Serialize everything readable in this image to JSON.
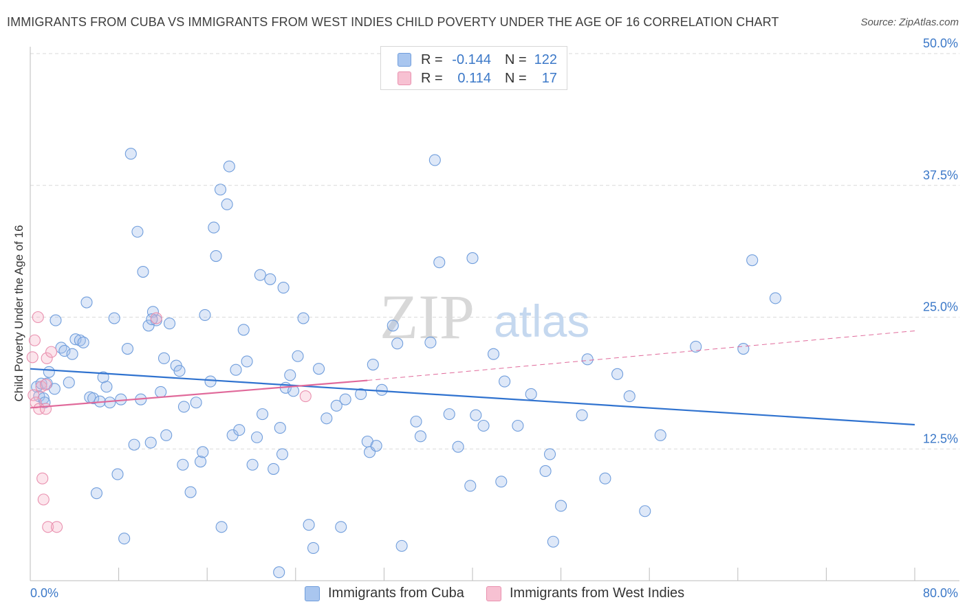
{
  "header": {
    "title": "IMMIGRANTS FROM CUBA VS IMMIGRANTS FROM WEST INDIES CHILD POVERTY UNDER THE AGE OF 16 CORRELATION CHART",
    "source": "Source: ZipAtlas.com"
  },
  "watermark": {
    "zip": "ZIP",
    "atlas": "atlas"
  },
  "legend": {
    "rows": [
      {
        "r_label": "R =",
        "r_value": "-0.144",
        "n_label": "N =",
        "n_value": "122",
        "color": "#a9c6ef",
        "border": "#6f9ddc"
      },
      {
        "r_label": "R =",
        "r_value": "0.114",
        "n_label": "N =",
        "n_value": "17",
        "color": "#f7c1d2",
        "border": "#e98fae"
      }
    ]
  },
  "bottom_legend": {
    "cuba": "Immigrants from Cuba",
    "west_indies": "Immigrants from West Indies"
  },
  "colors": {
    "cuba_fill": "rgba(160,190,235,0.35)",
    "cuba_stroke": "#6f9ddc",
    "cuba_line": "#2f72cf",
    "wi_fill": "rgba(245,180,200,0.35)",
    "wi_stroke": "#e98fae",
    "wi_line": "#e0699a",
    "axis_text": "#3b78c8",
    "grid": "#d9d9d9"
  },
  "chart_data": {
    "type": "scatter",
    "title": "IMMIGRANTS FROM CUBA VS IMMIGRANTS FROM WEST INDIES CHILD POVERTY UNDER THE AGE OF 16 CORRELATION CHART",
    "xlabel": "",
    "ylabel": "Child Poverty Under the Age of 16",
    "xlim": [
      0,
      80
    ],
    "ylim": [
      0,
      50
    ],
    "x_tick_labels": [
      "0.0%",
      "80.0%"
    ],
    "y_ticks": [
      12.5,
      25.0,
      37.5,
      50.0
    ],
    "y_tick_labels": [
      "12.5%",
      "25.0%",
      "37.5%",
      "50.0%"
    ],
    "grid": "horizontal dashed",
    "legend_placement": "top-center",
    "series": [
      {
        "name": "Immigrants from Cuba",
        "points": [
          [
            0.6,
            18.4
          ],
          [
            0.8,
            17.5
          ],
          [
            1.0,
            18.7
          ],
          [
            1.2,
            17.3
          ],
          [
            1.5,
            18.7
          ],
          [
            1.7,
            19.8
          ],
          [
            2.2,
            18.2
          ],
          [
            2.3,
            24.7
          ],
          [
            2.8,
            22.1
          ],
          [
            3.1,
            21.8
          ],
          [
            3.5,
            18.8
          ],
          [
            3.8,
            21.5
          ],
          [
            4.1,
            22.9
          ],
          [
            4.5,
            22.8
          ],
          [
            4.8,
            22.6
          ],
          [
            5.1,
            26.4
          ],
          [
            5.4,
            17.4
          ],
          [
            5.7,
            17.3
          ],
          [
            6.0,
            8.3
          ],
          [
            6.3,
            17.0
          ],
          [
            6.6,
            19.3
          ],
          [
            6.9,
            18.4
          ],
          [
            7.2,
            16.9
          ],
          [
            7.6,
            24.9
          ],
          [
            7.9,
            10.1
          ],
          [
            8.2,
            17.2
          ],
          [
            8.5,
            4.0
          ],
          [
            8.8,
            22.0
          ],
          [
            9.1,
            40.5
          ],
          [
            9.4,
            12.9
          ],
          [
            9.7,
            33.1
          ],
          [
            10.0,
            17.2
          ],
          [
            10.2,
            29.3
          ],
          [
            10.7,
            24.2
          ],
          [
            10.9,
            13.1
          ],
          [
            11.1,
            25.5
          ],
          [
            11.4,
            24.7
          ],
          [
            11.8,
            17.9
          ],
          [
            12.1,
            21.1
          ],
          [
            12.3,
            13.8
          ],
          [
            12.6,
            24.4
          ],
          [
            13.2,
            20.4
          ],
          [
            13.5,
            19.9
          ],
          [
            13.8,
            11.0
          ],
          [
            13.9,
            16.5
          ],
          [
            14.5,
            8.4
          ],
          [
            15.0,
            16.9
          ],
          [
            15.4,
            11.3
          ],
          [
            15.6,
            12.2
          ],
          [
            15.8,
            25.2
          ],
          [
            16.3,
            18.9
          ],
          [
            16.6,
            33.5
          ],
          [
            16.8,
            30.8
          ],
          [
            17.2,
            37.1
          ],
          [
            17.3,
            5.1
          ],
          [
            17.8,
            35.7
          ],
          [
            18.0,
            39.3
          ],
          [
            18.3,
            13.8
          ],
          [
            18.6,
            20.0
          ],
          [
            18.9,
            14.3
          ],
          [
            19.3,
            23.8
          ],
          [
            19.6,
            20.8
          ],
          [
            20.1,
            11.0
          ],
          [
            20.5,
            13.6
          ],
          [
            20.8,
            29.0
          ],
          [
            21.0,
            15.8
          ],
          [
            21.7,
            28.6
          ],
          [
            22.0,
            10.6
          ],
          [
            22.6,
            14.5
          ],
          [
            22.8,
            12.0
          ],
          [
            22.9,
            27.8
          ],
          [
            23.1,
            18.3
          ],
          [
            23.5,
            19.5
          ],
          [
            23.8,
            18.0
          ],
          [
            24.2,
            21.3
          ],
          [
            24.7,
            24.9
          ],
          [
            25.2,
            5.3
          ],
          [
            25.6,
            3.1
          ],
          [
            26.1,
            20.1
          ],
          [
            26.8,
            15.4
          ],
          [
            27.7,
            16.6
          ],
          [
            28.1,
            5.1
          ],
          [
            28.5,
            17.2
          ],
          [
            29.9,
            17.7
          ],
          [
            30.5,
            13.2
          ],
          [
            30.7,
            12.2
          ],
          [
            31.0,
            20.5
          ],
          [
            31.3,
            12.8
          ],
          [
            31.8,
            18.1
          ],
          [
            32.8,
            24.2
          ],
          [
            33.2,
            22.5
          ],
          [
            33.6,
            3.3
          ],
          [
            34.9,
            15.1
          ],
          [
            35.3,
            13.7
          ],
          [
            36.2,
            22.6
          ],
          [
            36.6,
            39.9
          ],
          [
            37.0,
            30.2
          ],
          [
            37.9,
            15.8
          ],
          [
            38.7,
            12.7
          ],
          [
            39.8,
            9.0
          ],
          [
            40.0,
            30.6
          ],
          [
            40.3,
            15.7
          ],
          [
            41.0,
            14.7
          ],
          [
            41.9,
            21.5
          ],
          [
            42.6,
            9.4
          ],
          [
            42.9,
            18.9
          ],
          [
            44.1,
            14.7
          ],
          [
            45.3,
            17.7
          ],
          [
            46.6,
            10.4
          ],
          [
            47.0,
            12.0
          ],
          [
            47.3,
            3.7
          ],
          [
            48.0,
            7.1
          ],
          [
            49.9,
            15.7
          ],
          [
            50.4,
            21.0
          ],
          [
            52.0,
            9.7
          ],
          [
            53.1,
            19.6
          ],
          [
            54.2,
            17.5
          ],
          [
            55.6,
            6.6
          ],
          [
            57.0,
            13.8
          ],
          [
            60.2,
            22.2
          ],
          [
            64.5,
            22.0
          ],
          [
            65.3,
            30.4
          ],
          [
            67.4,
            26.8
          ],
          [
            11.0,
            24.8
          ],
          [
            1.3,
            16.9
          ],
          [
            22.5,
            0.8
          ]
        ]
      },
      {
        "name": "Immigrants from West Indies",
        "points": [
          [
            0.2,
            21.2
          ],
          [
            0.3,
            17.6
          ],
          [
            0.4,
            22.8
          ],
          [
            0.5,
            16.9
          ],
          [
            0.7,
            25.0
          ],
          [
            0.8,
            16.3
          ],
          [
            1.0,
            18.4
          ],
          [
            1.1,
            9.7
          ],
          [
            1.2,
            7.7
          ],
          [
            1.4,
            18.6
          ],
          [
            1.4,
            16.3
          ],
          [
            1.5,
            21.1
          ],
          [
            1.6,
            5.1
          ],
          [
            1.9,
            21.7
          ],
          [
            2.4,
            5.1
          ],
          [
            11.4,
            24.9
          ],
          [
            24.9,
            17.5
          ]
        ]
      }
    ],
    "trend_lines": [
      {
        "series": "Immigrants from Cuba",
        "x": [
          0,
          80
        ],
        "y": [
          20.1,
          14.8
        ],
        "style": "solid"
      },
      {
        "series": "Immigrants from West Indies",
        "x": [
          0,
          30.5
        ],
        "y": [
          16.4,
          19.0
        ],
        "style": "solid"
      },
      {
        "series": "Immigrants from West Indies",
        "x": [
          30.5,
          80
        ],
        "y": [
          19.0,
          23.7
        ],
        "style": "dashed"
      }
    ]
  }
}
